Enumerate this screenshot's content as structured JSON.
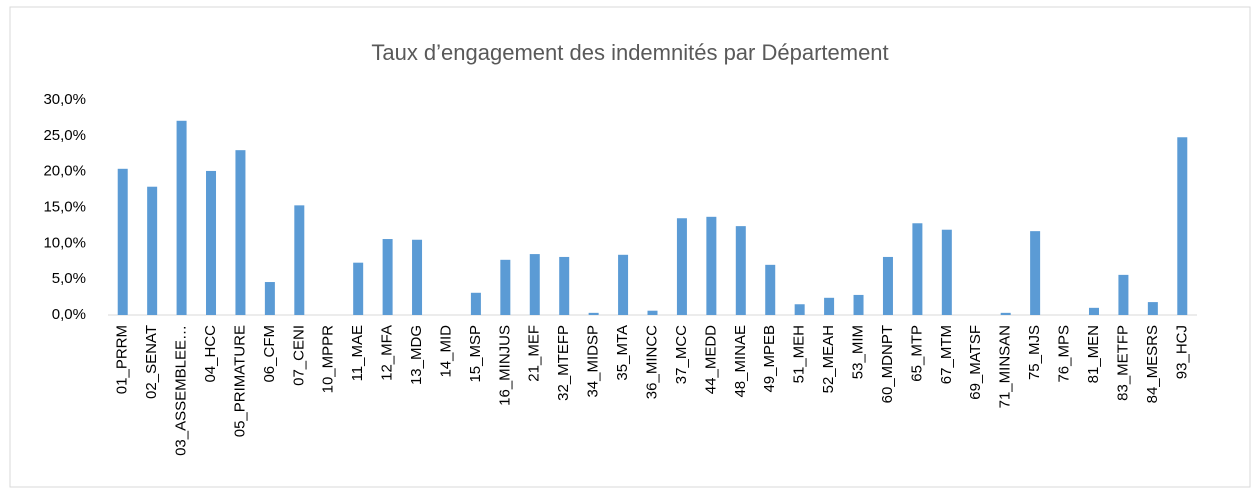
{
  "chart_data": {
    "type": "bar",
    "title": "Taux d’engagement des indemnités par Département",
    "categories": [
      "01_PRRM",
      "02_SENAT",
      "03_ASSEMBLEE…",
      "04_HCC",
      "05_PRIMATURE",
      "06_CFM",
      "07_CENI",
      "10_MPPR",
      "11_MAE",
      "12_MFA",
      "13_MDG",
      "14_MID",
      "15_MSP",
      "16_MINJUS",
      "21_MEF",
      "32_MTEFP",
      "34_MIDSP",
      "35_MTA",
      "36_MINCC",
      "37_MCC",
      "44_MEDD",
      "48_MINAE",
      "49_MPEB",
      "51_MEH",
      "52_MEAH",
      "53_MIM",
      "60_MDNPT",
      "65_MTP",
      "67_MTM",
      "69_MATSF",
      "71_MINSAN",
      "75_MJS",
      "76_MPS",
      "81_MEN",
      "83_METFP",
      "84_MESRS",
      "93_HCJ"
    ],
    "values": [
      20.4,
      17.9,
      27.1,
      20.1,
      23.0,
      4.6,
      15.3,
      0,
      7.3,
      10.6,
      10.5,
      0,
      3.1,
      7.7,
      8.5,
      8.1,
      0.3,
      8.4,
      0.6,
      13.5,
      13.7,
      12.4,
      7.0,
      1.5,
      2.4,
      2.8,
      8.1,
      12.8,
      11.9,
      0,
      0.3,
      11.7,
      0,
      1.0,
      5.6,
      1.8,
      24.8
    ],
    "color": "#5b9bd5",
    "ylim": [
      0,
      30
    ],
    "yticks": [
      {
        "value": 0,
        "label": "0,0%"
      },
      {
        "value": 5,
        "label": "5,0%"
      },
      {
        "value": 10,
        "label": "10,0%"
      },
      {
        "value": 15,
        "label": "15,0%"
      },
      {
        "value": 20,
        "label": "20,0%"
      },
      {
        "value": 25,
        "label": "25,0%"
      },
      {
        "value": 30,
        "label": "30,0%"
      }
    ],
    "grid": false
  }
}
